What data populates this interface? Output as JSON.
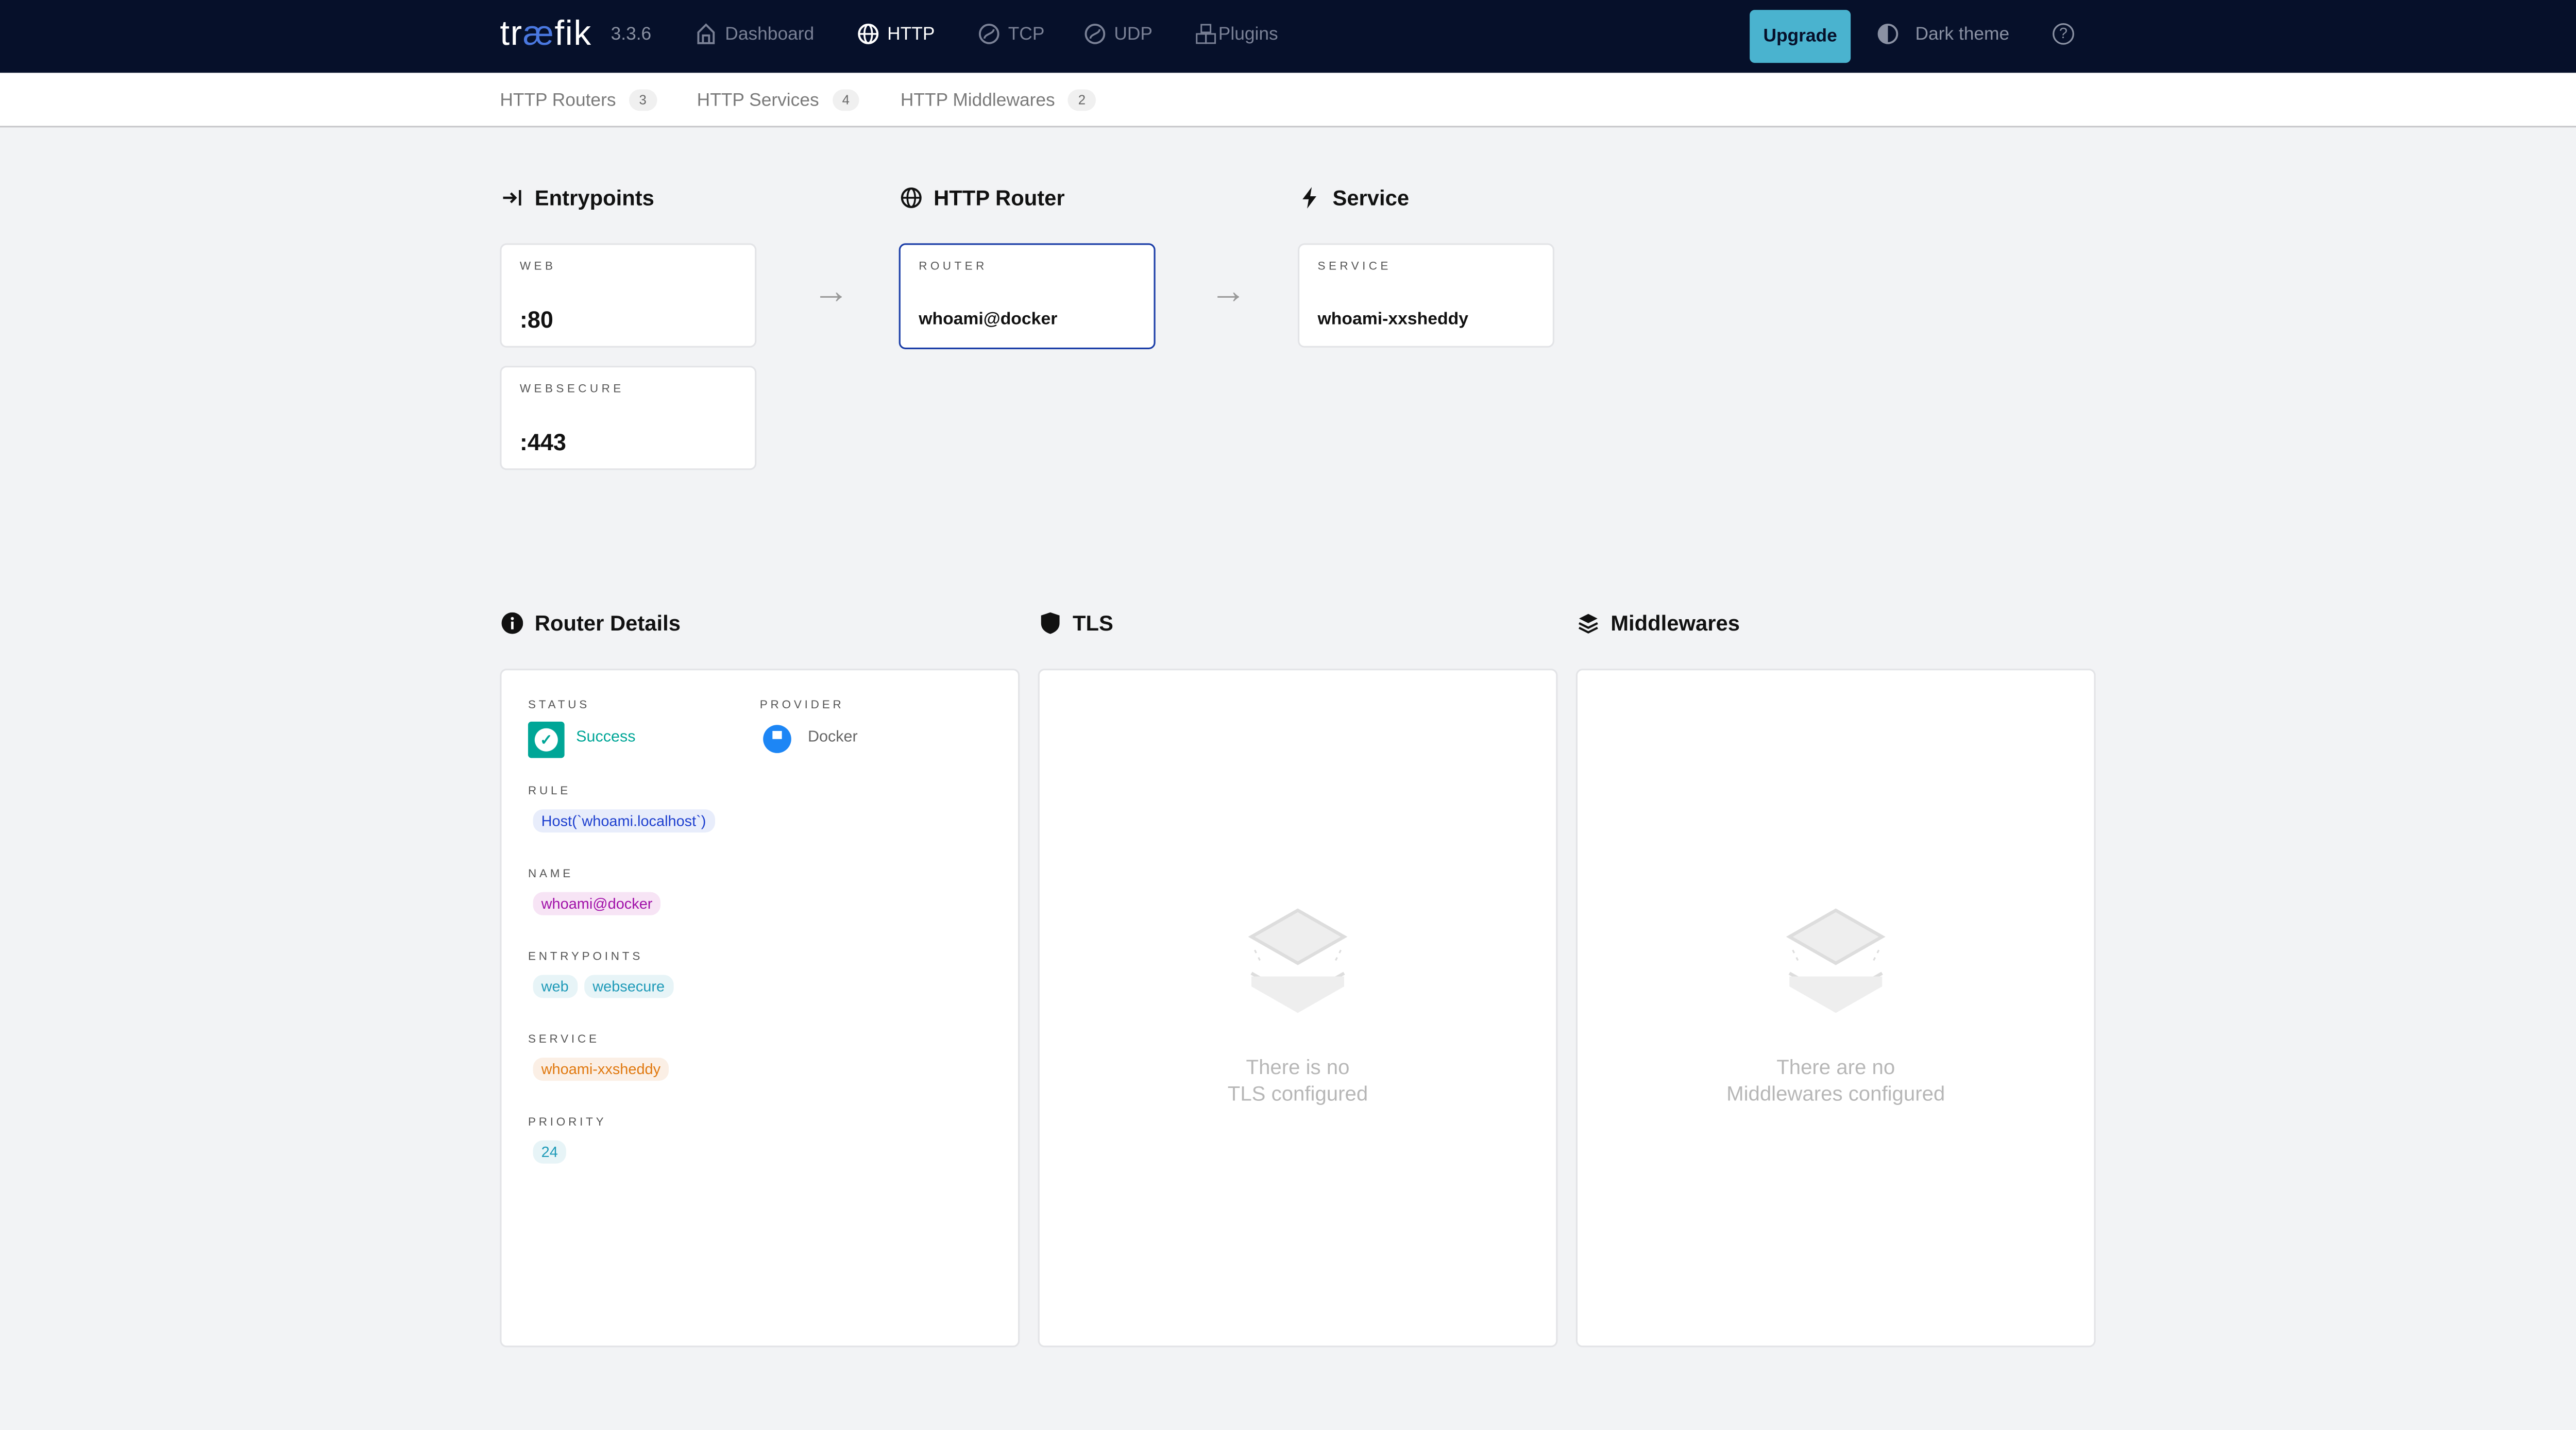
{
  "header": {
    "logo": "træfik",
    "logo_parts": [
      "tr",
      "æ",
      "fik"
    ],
    "version": "3.3.6",
    "nav": [
      {
        "label": "Dashboard",
        "icon": "home-icon"
      },
      {
        "label": "HTTP",
        "icon": "globe-icon",
        "active": true
      },
      {
        "label": "TCP",
        "icon": "tcp-icon"
      },
      {
        "label": "UDP",
        "icon": "udp-icon"
      },
      {
        "label": "Plugins",
        "icon": "plugins-icon"
      }
    ],
    "upgrade": "Upgrade",
    "dark_theme": "Dark theme"
  },
  "subnav": [
    {
      "label": "HTTP Routers",
      "count": "3"
    },
    {
      "label": "HTTP Services",
      "count": "4"
    },
    {
      "label": "HTTP Middlewares",
      "count": "2"
    }
  ],
  "flow": {
    "entrypoints_title": "Entrypoints",
    "router_title": "HTTP Router",
    "service_title": "Service",
    "entrypoints": [
      {
        "label": "WEB",
        "value": ":80"
      },
      {
        "label": "WEBSECURE",
        "value": ":443"
      }
    ],
    "router": {
      "label": "ROUTER",
      "value": "whoami@docker"
    },
    "service": {
      "label": "SERVICE",
      "value": "whoami-xxsheddy"
    }
  },
  "details": {
    "title": "Router Details",
    "status_label": "STATUS",
    "status": "Success",
    "provider_label": "PROVIDER",
    "provider": "Docker",
    "rule_label": "RULE",
    "rule": "Host(`whoami.localhost`)",
    "name_label": "NAME",
    "name": "whoami@docker",
    "entrypoints_label": "ENTRYPOINTS",
    "entrypoints": [
      "web",
      "websecure"
    ],
    "service_label": "SERVICE",
    "service": "whoami-xxsheddy",
    "priority_label": "PRIORITY",
    "priority": "24"
  },
  "tls": {
    "title": "TLS",
    "empty": [
      "There is no",
      "TLS configured"
    ]
  },
  "middlewares": {
    "title": "Middlewares",
    "empty": [
      "There are no",
      "Middlewares configured"
    ]
  },
  "colors": {
    "navbar": "#06102a",
    "accent": "#4ab3cf",
    "success": "#00a697",
    "router_border": "#1d3fa8"
  }
}
